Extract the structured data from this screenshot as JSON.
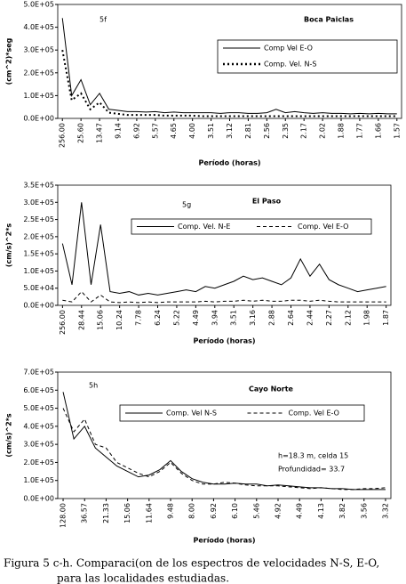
{
  "chart_data": [
    {
      "type": "line",
      "panel": "5f",
      "title": "Boca Paiclas",
      "ylabel": "(cm^2)*seg",
      "xlabel": "Período (horas)",
      "categories": [
        "256.00",
        null,
        "25.60",
        null,
        "13.47",
        null,
        "9.14",
        null,
        "6.92",
        null,
        "5.57",
        null,
        "4.65",
        null,
        "4.00",
        null,
        "3.51",
        null,
        "3.12",
        null,
        "2.81",
        null,
        "2.56",
        null,
        "2.35",
        null,
        "2.17",
        null,
        "2.02",
        null,
        "1.88",
        null,
        "1.77",
        null,
        "1.66",
        null,
        "1.57"
      ],
      "series": [
        {
          "name": "Comp Vel E-O",
          "color": "#000000",
          "style": "solid",
          "values": [
            440000,
            100000,
            170000,
            60000,
            110000,
            40000,
            35000,
            30000,
            30000,
            28000,
            30000,
            25000,
            28000,
            25000,
            25000,
            25000,
            25000,
            22000,
            25000,
            25000,
            22000,
            22000,
            25000,
            40000,
            25000,
            30000,
            25000,
            22000,
            25000,
            22000,
            22000,
            20000,
            22000,
            20000,
            22000,
            20000,
            20000
          ]
        },
        {
          "name": "Comp. Vel. N-S",
          "color": "#000000",
          "style": "dotted",
          "values": [
            300000,
            80000,
            110000,
            40000,
            70000,
            25000,
            20000,
            15000,
            15000,
            15000,
            15000,
            12000,
            12000,
            12000,
            12000,
            10000,
            10000,
            10000,
            10000,
            10000,
            10000,
            10000,
            10000,
            10000,
            10000,
            10000,
            10000,
            10000,
            10000,
            10000,
            10000,
            10000,
            10000,
            10000,
            10000,
            10000,
            10000
          ]
        }
      ],
      "ylim": [
        0,
        500000
      ],
      "yticks": [
        {
          "value": 0,
          "label": "0.0E+00"
        },
        {
          "value": 100000,
          "label": "1.0E+05"
        },
        {
          "value": 200000,
          "label": "2.0E+05"
        },
        {
          "value": 300000,
          "label": "3.0E+05"
        },
        {
          "value": 400000,
          "label": "4.0E+05"
        },
        {
          "value": 500000,
          "label": "5.0E+05"
        }
      ],
      "grid": false
    },
    {
      "type": "line",
      "panel": "5g",
      "title": "El Paso",
      "ylabel": "(cm/s)^2*s",
      "xlabel": "Período (horas)",
      "categories": [
        "256.00",
        null,
        "28.44",
        null,
        "15.06",
        null,
        "10.24",
        null,
        "7.78",
        null,
        "6.24",
        null,
        "5.22",
        null,
        "4.49",
        null,
        "3.94",
        null,
        "3.51",
        null,
        "3.16",
        null,
        "2.88",
        null,
        "2.64",
        null,
        "2.44",
        null,
        "2.27",
        null,
        "2.12",
        null,
        "1.98",
        null,
        "1.87"
      ],
      "series": [
        {
          "name": "Comp. Vel. N-E",
          "color": "#000000",
          "style": "solid",
          "values": [
            180000,
            60000,
            300000,
            60000,
            235000,
            40000,
            35000,
            40000,
            30000,
            35000,
            30000,
            35000,
            40000,
            45000,
            40000,
            55000,
            50000,
            60000,
            70000,
            85000,
            75000,
            80000,
            70000,
            60000,
            80000,
            135000,
            85000,
            120000,
            75000,
            60000,
            50000,
            40000,
            45000,
            50000,
            55000
          ]
        },
        {
          "name": "Comp. Vel E-O",
          "color": "#000000",
          "style": "dashed",
          "values": [
            15000,
            10000,
            40000,
            10000,
            30000,
            10000,
            8000,
            10000,
            8000,
            10000,
            8000,
            10000,
            10000,
            10000,
            10000,
            12000,
            10000,
            12000,
            12000,
            15000,
            12000,
            15000,
            12000,
            12000,
            15000,
            15000,
            12000,
            15000,
            12000,
            10000,
            10000,
            10000,
            10000,
            10000,
            10000
          ]
        }
      ],
      "ylim": [
        0,
        350000
      ],
      "yticks": [
        {
          "value": 0,
          "label": "0.0E+00"
        },
        {
          "value": 50000,
          "label": "5.0E+04"
        },
        {
          "value": 100000,
          "label": "1.0E+05"
        },
        {
          "value": 150000,
          "label": "1.5E+05"
        },
        {
          "value": 200000,
          "label": "2.0E+05"
        },
        {
          "value": 250000,
          "label": "2.5E+05"
        },
        {
          "value": 300000,
          "label": "3.0E+05"
        },
        {
          "value": 350000,
          "label": "3.5E+05"
        }
      ],
      "grid": false
    },
    {
      "type": "line",
      "panel": "5h",
      "title": "Cayo Norte",
      "ylabel": "(cm/s)^2*s",
      "xlabel": "Período  (horas)",
      "annotations": [
        "h=18.3 m, celda 15",
        "Profundidad= 33.7"
      ],
      "categories": [
        "128.00",
        null,
        "36.57",
        null,
        "21.33",
        null,
        "15.06",
        null,
        "11.64",
        null,
        "9.48",
        null,
        "8.00",
        null,
        "6.92",
        null,
        "6.10",
        null,
        "5.46",
        null,
        "4.92",
        null,
        "4.49",
        null,
        "4.13",
        null,
        "3.82",
        null,
        "3.56",
        null,
        "3.32"
      ],
      "series": [
        {
          "name": "Comp. Vel N-S",
          "color": "#000000",
          "style": "solid",
          "values": [
            590000,
            330000,
            400000,
            280000,
            230000,
            180000,
            150000,
            120000,
            130000,
            160000,
            210000,
            150000,
            110000,
            90000,
            80000,
            80000,
            85000,
            80000,
            80000,
            70000,
            75000,
            70000,
            65000,
            60000,
            60000,
            55000,
            55000,
            50000,
            50000,
            50000,
            50000
          ]
        },
        {
          "name": "Comp. Vel E-O",
          "color": "#000000",
          "style": "dashed",
          "values": [
            500000,
            370000,
            440000,
            300000,
            280000,
            200000,
            170000,
            140000,
            120000,
            150000,
            200000,
            140000,
            100000,
            80000,
            80000,
            90000,
            85000,
            75000,
            70000,
            70000,
            70000,
            65000,
            60000,
            55000,
            60000,
            55000,
            50000,
            50000,
            55000,
            55000,
            60000
          ]
        }
      ],
      "ylim": [
        0,
        700000
      ],
      "yticks": [
        {
          "value": 0,
          "label": "0.0E+00"
        },
        {
          "value": 100000,
          "label": "1.0E+05"
        },
        {
          "value": 200000,
          "label": "2.0E+05"
        },
        {
          "value": 300000,
          "label": "3.0E+05"
        },
        {
          "value": 400000,
          "label": "4.0E+05"
        },
        {
          "value": 500000,
          "label": "5.0E+05"
        },
        {
          "value": 600000,
          "label": "6.0E+05"
        },
        {
          "value": 700000,
          "label": "7.0E+05"
        }
      ],
      "grid": false
    }
  ],
  "caption": [
    "Figura 5 c-h. Comparaci(on de los espectros de velocidades N-S, E-O,",
    "para las localidades estudiadas."
  ]
}
